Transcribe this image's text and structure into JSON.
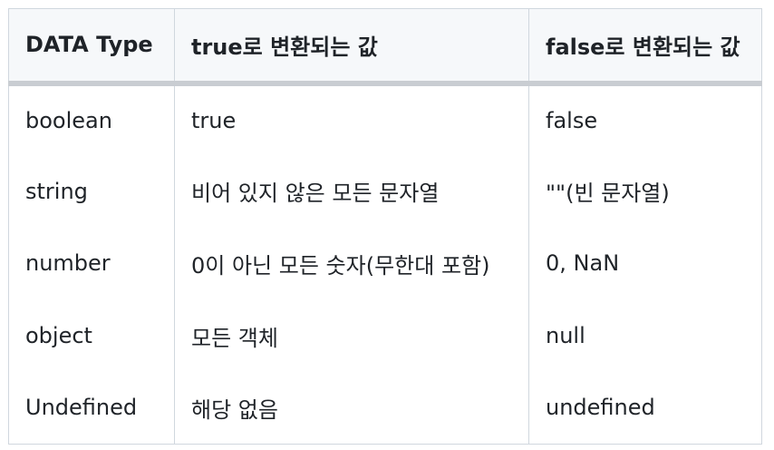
{
  "table": {
    "headers": [
      "DATA Type",
      "true로 변환되는 값",
      "false로 변환되는 값"
    ],
    "rows": [
      [
        "boolean",
        "true",
        "false"
      ],
      [
        "string",
        "비어 있지 않은 모든 문자열",
        "\"\"(빈 문자열)"
      ],
      [
        "number",
        "0이 아닌 모든 숫자(무한대 포함)",
        "0, NaN"
      ],
      [
        "object",
        "모든 객체",
        "null"
      ],
      [
        "Undefined",
        "해당 없음",
        "undefined"
      ]
    ]
  }
}
